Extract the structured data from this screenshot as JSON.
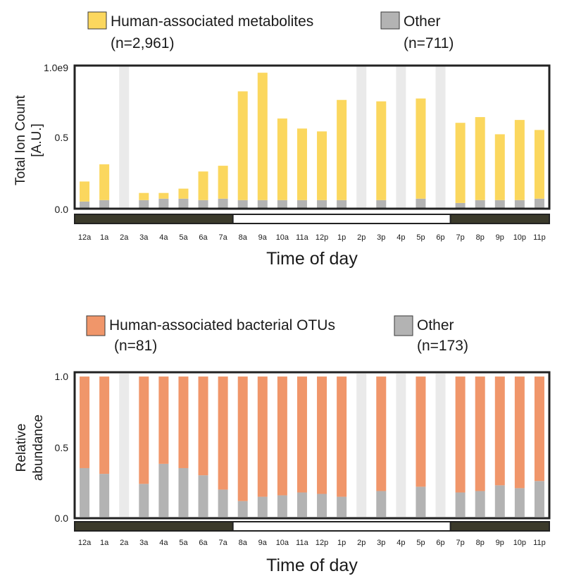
{
  "chart_data": [
    {
      "type": "bar",
      "stacked": true,
      "legend": [
        {
          "name": "Human-associated metabolites",
          "n": "(n=2,961)"
        },
        {
          "name": "Other",
          "n": "(n=711)"
        }
      ],
      "xlabel": "Time of day",
      "ylabel": "Total Ion Count",
      "ylabel_unit": "[A.U.]",
      "ylim": [
        0,
        1.0
      ],
      "yticks": [
        "0.0",
        "0.5",
        "1.0e9"
      ],
      "categories": [
        "12a",
        "1a",
        "2a",
        "3a",
        "4a",
        "5a",
        "6a",
        "7a",
        "8a",
        "9a",
        "10a",
        "11a",
        "12p",
        "1p",
        "2p",
        "3p",
        "4p",
        "5p",
        "6p",
        "7p",
        "8p",
        "9p",
        "10p",
        "11p"
      ],
      "missing": [
        "2a",
        "2p",
        "4p",
        "6p"
      ],
      "series": [
        {
          "name": "Other",
          "values": [
            0.05,
            0.06,
            null,
            0.06,
            0.07,
            0.07,
            0.06,
            0.07,
            0.06,
            0.06,
            0.06,
            0.06,
            0.06,
            0.06,
            null,
            0.06,
            null,
            0.07,
            null,
            0.04,
            0.06,
            0.06,
            0.06,
            0.07
          ]
        },
        {
          "name": "Human-associated metabolites",
          "values": [
            0.14,
            0.25,
            null,
            0.05,
            0.04,
            0.07,
            0.2,
            0.23,
            0.76,
            0.89,
            0.57,
            0.5,
            0.48,
            0.7,
            null,
            0.69,
            null,
            0.7,
            null,
            0.56,
            0.58,
            0.46,
            0.56,
            0.48
          ]
        }
      ],
      "light_period": {
        "dark_until": "7a",
        "dark_from": "7p"
      },
      "colors": {
        "main": "#fbd75e",
        "other": "#b3b3b3",
        "missing": "#eaeaea",
        "dark": "#3b3a2b"
      }
    },
    {
      "type": "bar",
      "stacked": true,
      "legend": [
        {
          "name": "Human-associated bacterial OTUs",
          "n": "(n=81)"
        },
        {
          "name": "Other",
          "n": "(n=173)"
        }
      ],
      "xlabel": "Time of day",
      "ylabel": "Relative",
      "ylabel_line2": "abundance",
      "ylim": [
        0,
        1.0
      ],
      "yticks": [
        "0.0",
        "0.5",
        "1.0"
      ],
      "categories": [
        "12a",
        "1a",
        "2a",
        "3a",
        "4a",
        "5a",
        "6a",
        "7a",
        "8a",
        "9a",
        "10a",
        "11a",
        "12p",
        "1p",
        "2p",
        "3p",
        "4p",
        "5p",
        "6p",
        "7p",
        "8p",
        "9p",
        "10p",
        "11p"
      ],
      "missing": [
        "2a",
        "2p",
        "4p",
        "6p"
      ],
      "series": [
        {
          "name": "Other",
          "values": [
            0.34,
            0.3,
            null,
            0.23,
            0.37,
            0.34,
            0.29,
            0.19,
            0.11,
            0.14,
            0.15,
            0.17,
            0.16,
            0.14,
            null,
            0.18,
            null,
            0.21,
            null,
            0.17,
            0.18,
            0.22,
            0.2,
            0.25
          ]
        },
        {
          "name": "Human-associated bacterial OTUs",
          "values": [
            0.64,
            0.68,
            null,
            0.75,
            0.61,
            0.64,
            0.69,
            0.79,
            0.87,
            0.84,
            0.83,
            0.81,
            0.82,
            0.84,
            null,
            0.8,
            null,
            0.77,
            null,
            0.81,
            0.8,
            0.76,
            0.78,
            0.73
          ]
        }
      ],
      "light_period": {
        "dark_until": "7a",
        "dark_from": "7p"
      },
      "colors": {
        "main": "#f0966a",
        "other": "#b3b3b3",
        "missing": "#eaeaea",
        "dark": "#3b3a2b"
      }
    }
  ]
}
